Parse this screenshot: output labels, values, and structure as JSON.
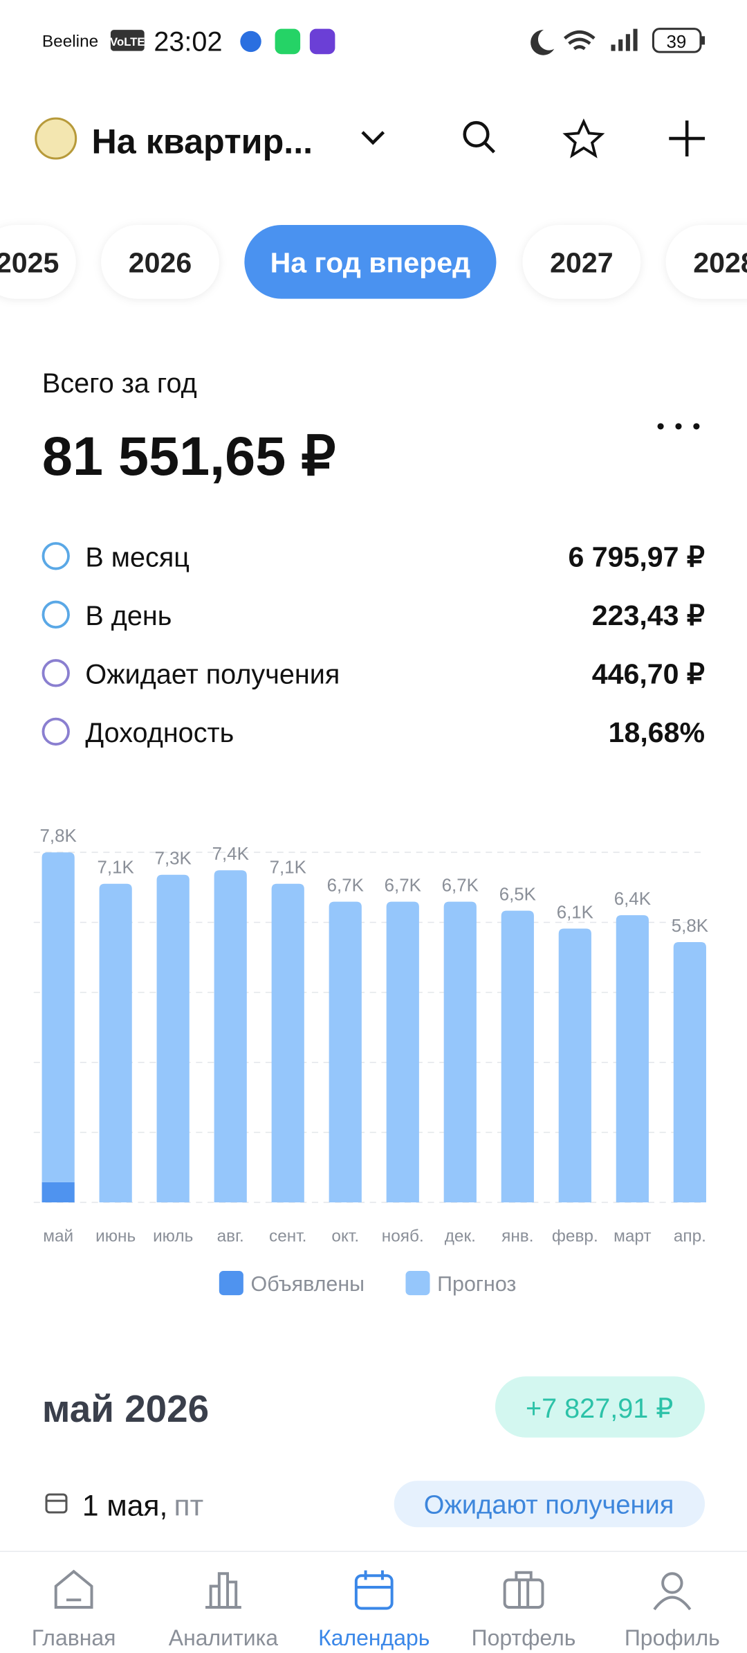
{
  "status_bar": {
    "carrier": "Beeline",
    "volte": "VoLTE",
    "time": "23:02",
    "battery": "39"
  },
  "header": {
    "title": "На квартир..."
  },
  "tabs": {
    "items": [
      "2025",
      "2026",
      "На год вперед",
      "2027",
      "2028"
    ],
    "active": 2
  },
  "summary": {
    "label": "Всего за год",
    "total": "81 551,65 ₽",
    "rows": [
      {
        "label": "В месяц",
        "value": "6 795,97 ₽",
        "color": "#5aa8e6"
      },
      {
        "label": "В день",
        "value": "223,43 ₽",
        "color": "#5aa8e6"
      },
      {
        "label": "Ожидает получения",
        "value": "446,70 ₽",
        "color": "#8a7fd0"
      },
      {
        "label": "Доходность",
        "value": "18,68%",
        "color": "#8a7fd0"
      }
    ]
  },
  "chart_data": {
    "type": "stacked_bar",
    "categories": [
      "май",
      "июнь",
      "июль",
      "авг.",
      "сент.",
      "окт.",
      "нояб.",
      "дек.",
      "янв.",
      "февр.",
      "март",
      "апр."
    ],
    "series": [
      {
        "name": "Объявлены",
        "color": "#4f93ef",
        "values": [
          0.45,
          0,
          0,
          0,
          0,
          0,
          0,
          0,
          0,
          0,
          0,
          0
        ]
      },
      {
        "name": "Прогноз",
        "color": "#95c6fb",
        "values": [
          7.35,
          7.1,
          7.3,
          7.4,
          7.1,
          6.7,
          6.7,
          6.7,
          6.5,
          6.1,
          6.4,
          5.8
        ]
      }
    ],
    "totals": {
      "values": [
        7.8,
        7.1,
        7.3,
        7.4,
        7.1,
        6.7,
        6.7,
        6.7,
        6.5,
        6.1,
        6.4,
        5.8
      ],
      "value_labels": [
        "7,8K",
        "7,1K",
        "7,3K",
        "7,4K",
        "7,1K",
        "6,7K",
        "6,7K",
        "6,7K",
        "6,5K",
        "6,1K",
        "6,4K",
        "5,8K"
      ]
    },
    "ylim": [
      0,
      7.8
    ],
    "grid": true
  },
  "month_section": {
    "title": "май 2026",
    "amount": "+7 827,91 ₽",
    "date": "1 мая,",
    "weekday": "пт",
    "status": "Ожидают получения"
  },
  "nav": {
    "items": [
      "Главная",
      "Аналитика",
      "Календарь",
      "Портфель",
      "Профиль"
    ],
    "active": 2
  }
}
